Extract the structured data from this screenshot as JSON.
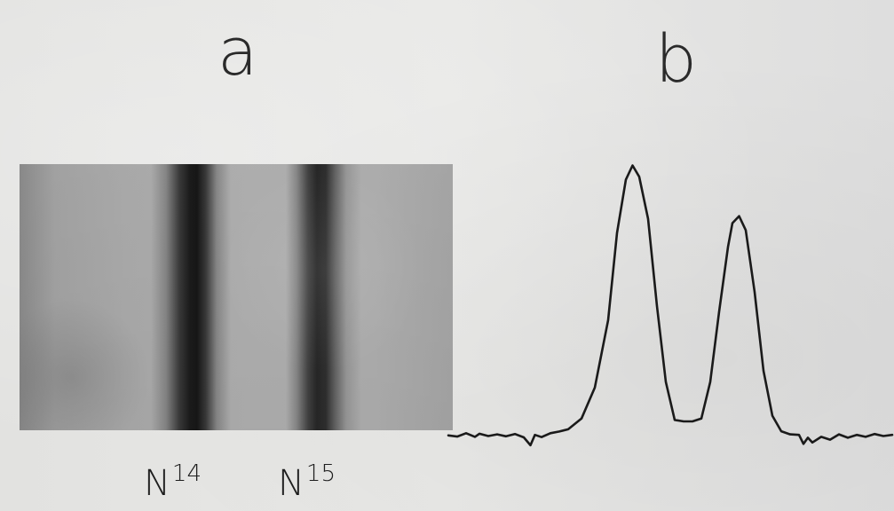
{
  "figure": {
    "panel_a": {
      "label": "a",
      "bands": [
        {
          "isotope": "N",
          "mass": "14"
        },
        {
          "isotope": "N",
          "mass": "15"
        }
      ]
    },
    "panel_b": {
      "label": "b"
    },
    "chart_data": {
      "type": "line",
      "title": "",
      "xlabel": "",
      "ylabel": "",
      "grid": false,
      "legend": "none",
      "x_domain": [
        0,
        100
      ],
      "y_domain": [
        0,
        100
      ],
      "series": [
        {
          "color": "#1a1a1a",
          "x": [
            0,
            2,
            4,
            6,
            7,
            9,
            11,
            13,
            15,
            17,
            18.5,
            19.5,
            21,
            23,
            25,
            27,
            30,
            33,
            36,
            38,
            40,
            41.5,
            43,
            45,
            47,
            49,
            51,
            53,
            55,
            57,
            59,
            61,
            63,
            64,
            65.5,
            67,
            69,
            71,
            73,
            75,
            77,
            79,
            80,
            81,
            82,
            84,
            86,
            88,
            90,
            92,
            94,
            96,
            98,
            100
          ],
          "y": [
            1,
            0.6,
            1.8,
            0.5,
            1.6,
            0.8,
            1.4,
            0.7,
            1.5,
            0.3,
            -2.5,
            1.2,
            0.4,
            1.8,
            2.4,
            3.2,
            7,
            18,
            42,
            73,
            92,
            97,
            93,
            78,
            47,
            20,
            6.5,
            6,
            6,
            7,
            20,
            45,
            68,
            76.5,
            79,
            74,
            52,
            24,
            8,
            2.5,
            1.4,
            1.2,
            -2,
            0.2,
            -1.5,
            0.5,
            -0.5,
            1.4,
            0.2,
            1.2,
            0.5,
            1.5,
            0.8,
            1.2
          ]
        }
      ]
    }
  }
}
